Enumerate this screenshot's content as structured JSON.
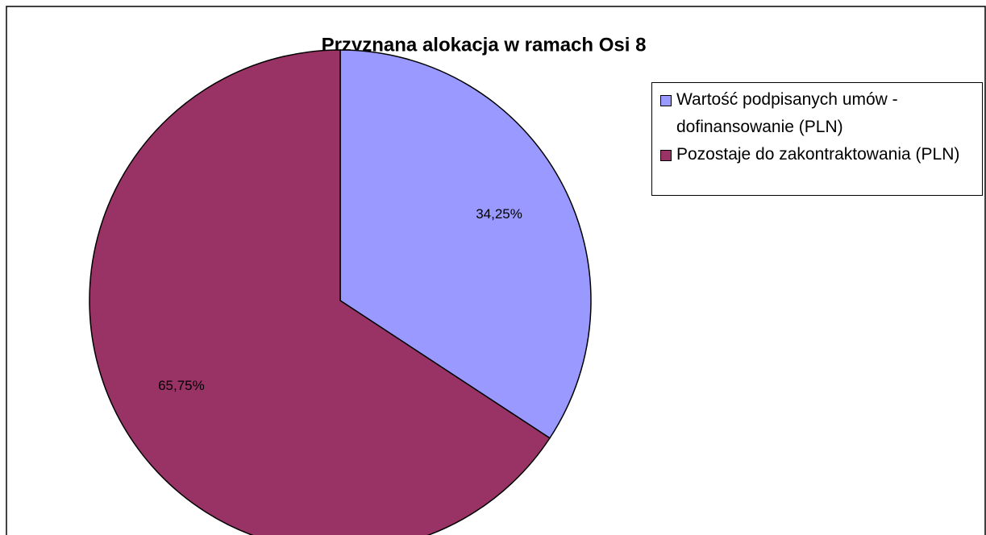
{
  "chart_data": {
    "type": "pie",
    "title": "Przyznana alokacja w ramach Osi 8",
    "categories": [
      "Wartość podpisanych umów - dofinansowanie (PLN)",
      "Pozostaje do zakontraktowania (PLN)"
    ],
    "values": [
      34.25,
      65.75
    ],
    "value_labels": [
      "34,25%",
      "65,75%"
    ],
    "colors": [
      "#9999ff",
      "#993366"
    ],
    "legend": "right"
  }
}
